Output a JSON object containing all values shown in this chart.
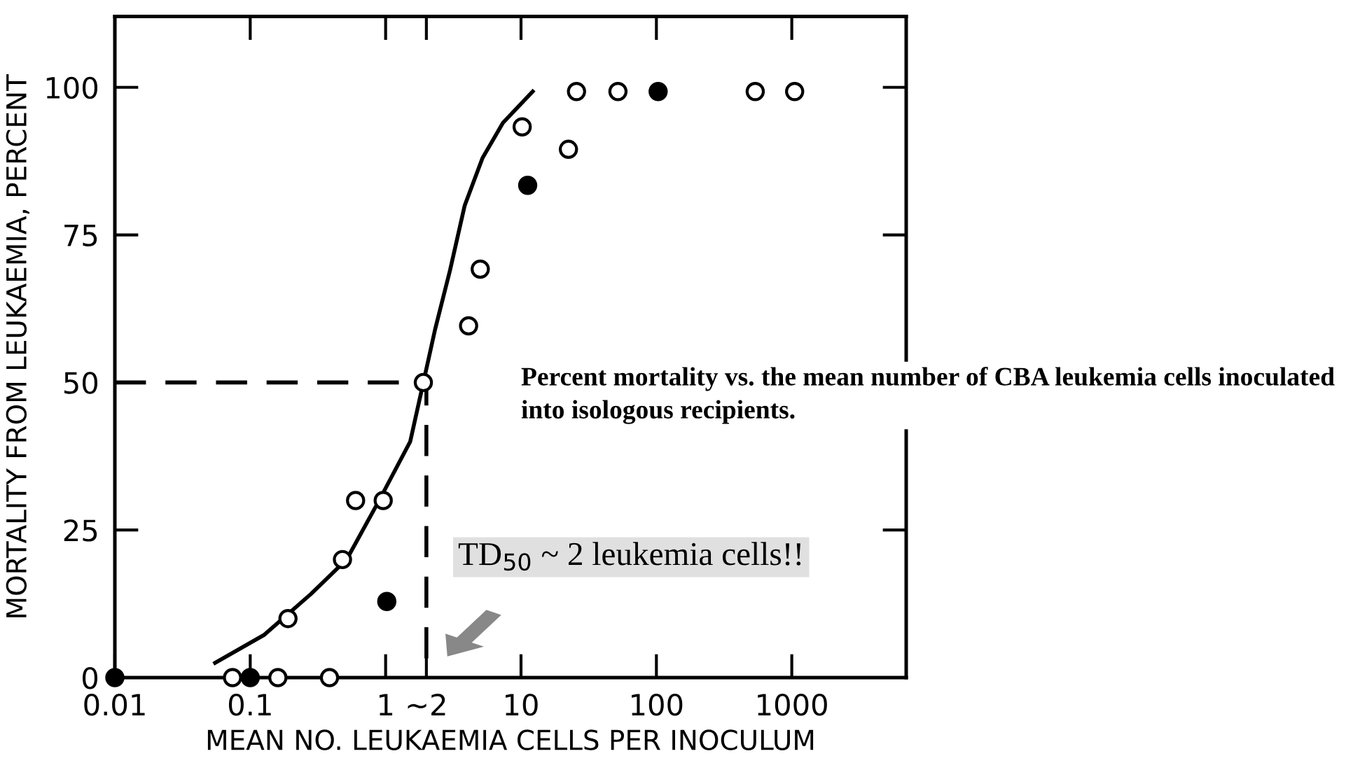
{
  "chart_data": {
    "type": "scatter",
    "xlabel": "MEAN NO. LEUKAEMIA CELLS PER INOCULUM",
    "ylabel": "MORTALITY FROM LEUKAEMIA, PERCENT",
    "log": "x",
    "xlim": [
      0.01,
      7000
    ],
    "xticks": [
      0.01,
      0.1,
      1,
      {
        "value": 2,
        "label": "~2"
      },
      10,
      100,
      1000
    ],
    "ylim": [
      0,
      112
    ],
    "yticks": [
      0,
      25,
      50,
      75,
      100
    ],
    "grid": false,
    "marker": "circle",
    "series": [
      {
        "color": "#ffffff",
        "x": [
          0.074,
          0.16,
          0.385,
          0.19,
          0.48,
          0.6,
          0.96,
          1.9,
          4.1,
          5.0,
          10.2,
          22.4,
          25.7,
          52,
          537,
          1050
        ],
        "values": [
          0,
          0,
          0,
          10,
          20,
          30,
          30,
          50,
          59.6,
          69.2,
          93.3,
          89.5,
          99.3,
          99.3,
          99.3,
          99.3
        ]
      },
      {
        "color": "#000000",
        "x": [
          0.01,
          0.1,
          1.02,
          11.2,
          103
        ],
        "values": [
          0,
          0,
          12.9,
          83.4,
          99.3
        ]
      },
      {
        "type": "line",
        "marker": "none",
        "color": "#000000",
        "line_style": "solid",
        "x": [
          0.055,
          0.126,
          0.282,
          0.515,
          0.895,
          1.52,
          1.9,
          2.32,
          2.99,
          3.84,
          5.19,
          7.36,
          12.2
        ],
        "values": [
          2.5,
          7.2,
          14.2,
          20,
          30,
          40,
          50,
          59,
          69,
          80,
          88,
          94,
          99.3
        ]
      },
      {
        "type": "line",
        "marker": "none",
        "color": "#000000",
        "line_style": "dashed",
        "x": [
          0.01,
          2,
          2
        ],
        "values": [
          50,
          50,
          0
        ]
      }
    ],
    "annotations": [
      "Percent mortality vs. the mean number of CBA leukemia cells inoculated\ninto isologous recipients.",
      "TD$_{50}$ ~ 2 leukemia cells!!"
    ]
  }
}
